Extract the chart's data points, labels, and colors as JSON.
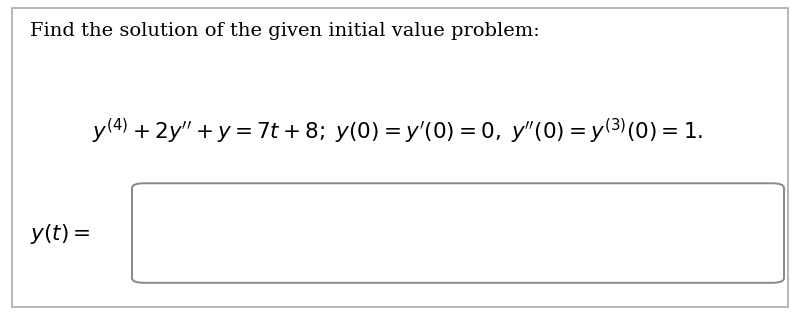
{
  "bg_color": "#ffffff",
  "text_color": "#000000",
  "title_text": "Find the solution of the given initial value problem:",
  "equation_text": "$y^{(4)} + 2y'' + y = 7t + 8;\\; y(0) = y'(0) = 0,\\; y''(0) = y^{(3)}(0) = 1.$",
  "label_text": "$y(t) =$",
  "title_fontsize": 14,
  "equation_fontsize": 15.5,
  "label_fontsize": 15.5,
  "fig_width": 8.0,
  "fig_height": 3.16,
  "outer_border_color": "#aaaaaa",
  "box_border_color": "#888888"
}
